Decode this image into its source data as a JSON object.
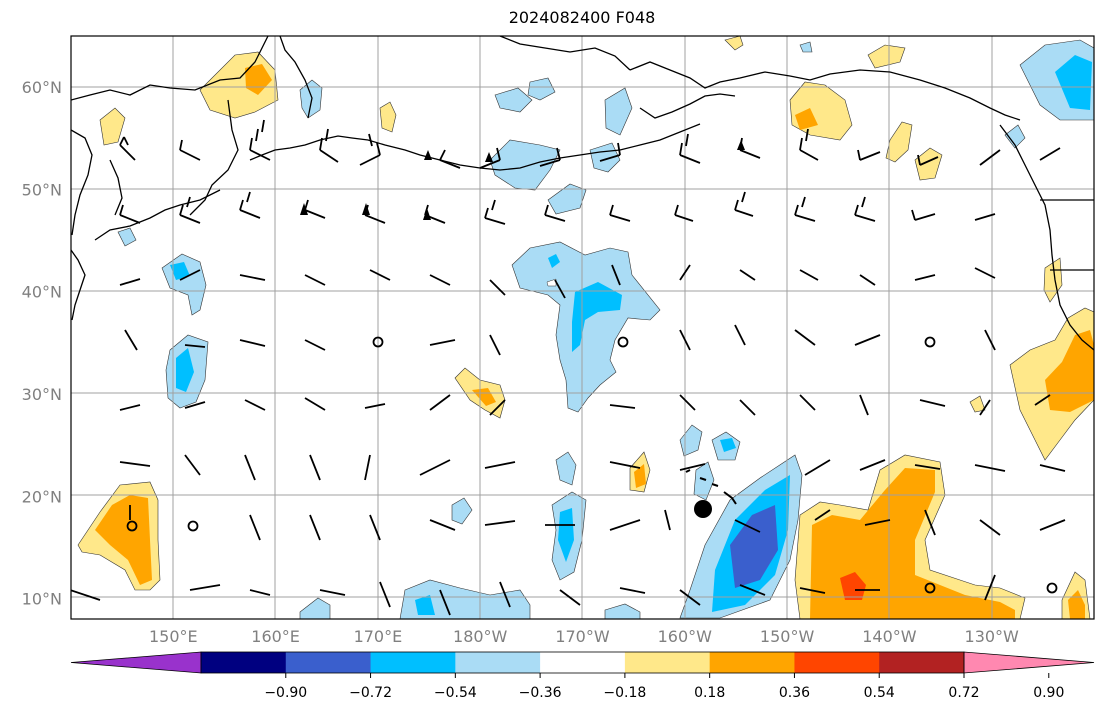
{
  "title": "2024082400 F048",
  "lat_labels": [
    {
      "text": "60°N",
      "lat": 60
    },
    {
      "text": "50°N",
      "lat": 50
    },
    {
      "text": "40°N",
      "lat": 40
    },
    {
      "text": "30°N",
      "lat": 30
    },
    {
      "text": "20°N",
      "lat": 20
    },
    {
      "text": "10°N",
      "lat": 10
    }
  ],
  "lon_labels": [
    {
      "text": "150°E",
      "lon": 150
    },
    {
      "text": "160°E",
      "lon": 160
    },
    {
      "text": "170°E",
      "lon": 170
    },
    {
      "text": "180°W",
      "lon": 180
    },
    {
      "text": "170°W",
      "lon": 190
    },
    {
      "text": "160°W",
      "lon": 200
    },
    {
      "text": "150°W",
      "lon": 210
    },
    {
      "text": "140°W",
      "lon": 220
    },
    {
      "text": "130°W",
      "lon": 230
    }
  ],
  "extent": {
    "lon_min": 140,
    "lon_max": 240,
    "lat_min": 8,
    "lat_max": 65
  },
  "colorbar": {
    "labels": [
      "−0.90",
      "−0.72",
      "−0.54",
      "−0.36",
      "−0.18",
      "0.18",
      "0.36",
      "0.54",
      "0.72",
      "0.90"
    ],
    "colors": [
      "#9932cc",
      "#000080",
      "#3a5fcd",
      "#00bfff",
      "#aadcf5",
      "#ffffff",
      "#ffe88a",
      "#ffa500",
      "#ff4500",
      "#b22222",
      "#ff88b0"
    ]
  },
  "colors": {
    "grid": "#a0a0a0",
    "coast": "#000000",
    "label": "#808080"
  }
}
